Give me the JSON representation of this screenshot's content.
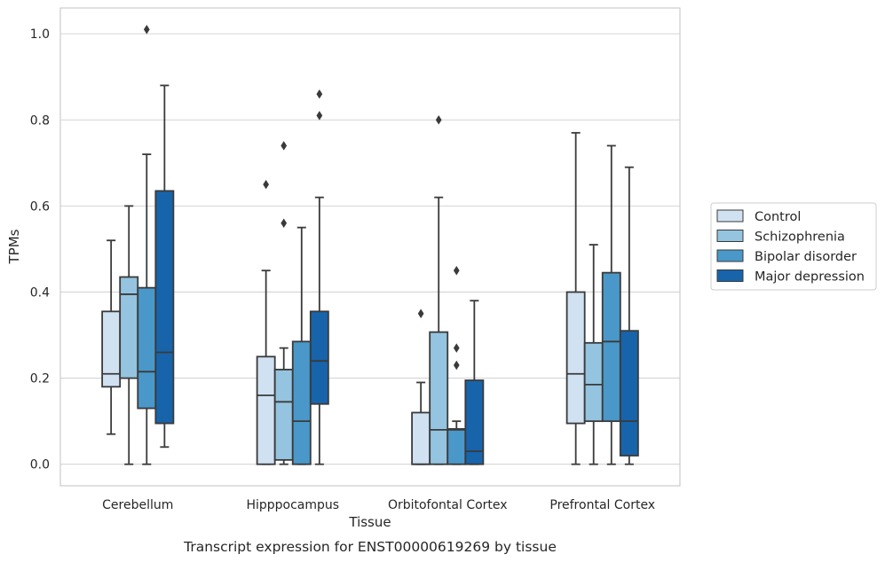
{
  "chart_data": {
    "type": "boxplot",
    "xlabel": "Tissue",
    "ylabel": "TPMs",
    "caption": "Transcript expression for ENST00000619269 by tissue",
    "categories": [
      "Cerebellum",
      "Hipppocampus",
      "Orbitofontal Cortex",
      "Prefrontal Cortex"
    ],
    "ylim": [
      -0.05,
      1.06
    ],
    "yticks": [
      "0.0",
      "0.2",
      "0.4",
      "0.6",
      "0.8",
      "1.0"
    ],
    "grid": true,
    "legend_position": "right",
    "series": [
      {
        "name": "Control",
        "color": "#d0e1f2",
        "boxes": [
          {
            "whislo": 0.07,
            "q1": 0.18,
            "med": 0.21,
            "q3": 0.355,
            "whishi": 0.52,
            "fliers": []
          },
          {
            "whislo": 0.0,
            "q1": 0.0,
            "med": 0.16,
            "q3": 0.25,
            "whishi": 0.45,
            "fliers": [
              0.65
            ]
          },
          {
            "whislo": 0.0,
            "q1": 0.0,
            "med": 0.0,
            "q3": 0.12,
            "whishi": 0.19,
            "fliers": [
              0.35
            ]
          },
          {
            "whislo": 0.0,
            "q1": 0.095,
            "med": 0.21,
            "q3": 0.4,
            "whishi": 0.77,
            "fliers": []
          }
        ]
      },
      {
        "name": "Schizophrenia",
        "color": "#94c4df",
        "boxes": [
          {
            "whislo": 0.0,
            "q1": 0.2,
            "med": 0.395,
            "q3": 0.435,
            "whishi": 0.6,
            "fliers": []
          },
          {
            "whislo": 0.0,
            "q1": 0.01,
            "med": 0.145,
            "q3": 0.22,
            "whishi": 0.27,
            "fliers": [
              0.56,
              0.74
            ]
          },
          {
            "whislo": 0.0,
            "q1": 0.0,
            "med": 0.08,
            "q3": 0.307,
            "whishi": 0.62,
            "fliers": [
              0.8
            ]
          },
          {
            "whislo": 0.0,
            "q1": 0.1,
            "med": 0.185,
            "q3": 0.282,
            "whishi": 0.51,
            "fliers": []
          }
        ]
      },
      {
        "name": "Bipolar disorder",
        "color": "#4a98c9",
        "boxes": [
          {
            "whislo": 0.0,
            "q1": 0.13,
            "med": 0.215,
            "q3": 0.41,
            "whishi": 0.72,
            "fliers": [
              1.01
            ]
          },
          {
            "whislo": 0.0,
            "q1": 0.0,
            "med": 0.1,
            "q3": 0.285,
            "whishi": 0.55,
            "fliers": []
          },
          {
            "whislo": 0.0,
            "q1": 0.0,
            "med": 0.08,
            "q3": 0.082,
            "whishi": 0.1,
            "fliers": [
              0.23,
              0.27,
              0.45
            ]
          },
          {
            "whislo": 0.0,
            "q1": 0.1,
            "med": 0.285,
            "q3": 0.445,
            "whishi": 0.74,
            "fliers": []
          }
        ]
      },
      {
        "name": "Major depression",
        "color": "#1764ab",
        "boxes": [
          {
            "whislo": 0.04,
            "q1": 0.095,
            "med": 0.26,
            "q3": 0.635,
            "whishi": 0.88,
            "fliers": []
          },
          {
            "whislo": 0.0,
            "q1": 0.14,
            "med": 0.24,
            "q3": 0.355,
            "whishi": 0.62,
            "fliers": [
              0.81,
              0.86
            ]
          },
          {
            "whislo": 0.0,
            "q1": 0.0,
            "med": 0.03,
            "q3": 0.195,
            "whishi": 0.38,
            "fliers": []
          },
          {
            "whislo": 0.0,
            "q1": 0.02,
            "med": 0.1,
            "q3": 0.31,
            "whishi": 0.69,
            "fliers": []
          }
        ]
      }
    ]
  }
}
